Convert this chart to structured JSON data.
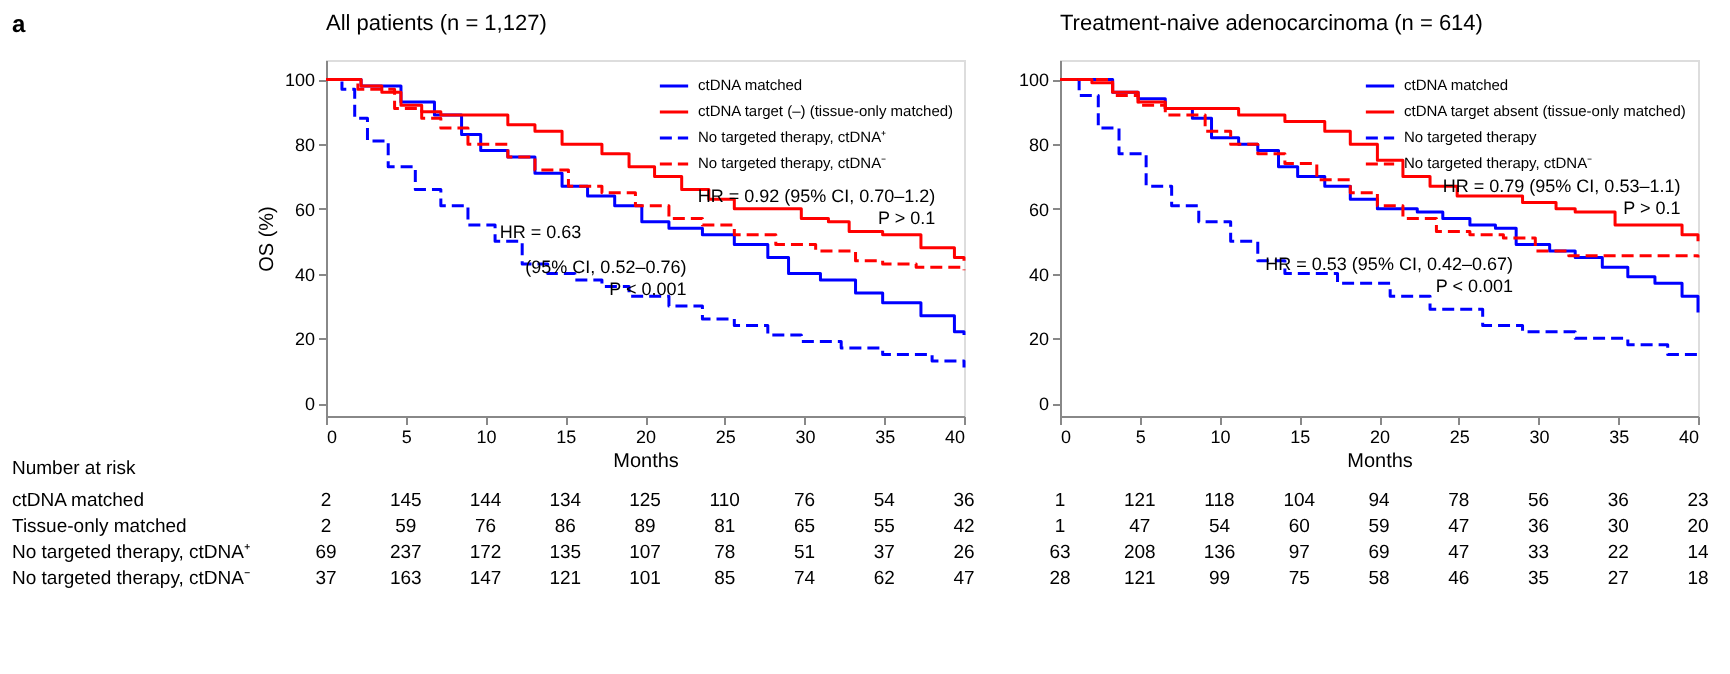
{
  "chart_data": [
    {
      "type": "step",
      "title": "All patients (n = 1,127)",
      "xlabel": "Months",
      "ylabel": "OS (%)",
      "xlim": [
        0,
        40
      ],
      "xticks": [
        0,
        5,
        10,
        15,
        20,
        25,
        30,
        35,
        40
      ],
      "ylim": [
        -4,
        106
      ],
      "yticks": [
        0,
        20,
        40,
        60,
        80,
        100
      ],
      "legend": "top right",
      "series": [
        {
          "name": "ctDNA matched",
          "color": "#0000ff",
          "line_style": "solid",
          "x": [
            0,
            2.2,
            4.7,
            6.8,
            8.5,
            9.7,
            11.4,
            13.1,
            14.8,
            16.4,
            18.1,
            19.8,
            21.5,
            23.6,
            25.6,
            27.7,
            29,
            31,
            33.2,
            34.9,
            37.3,
            39.4,
            40
          ],
          "values": [
            100,
            98,
            93,
            89,
            83,
            78,
            76,
            71,
            67,
            64,
            61,
            56,
            54,
            52,
            49,
            45,
            40,
            38,
            34,
            31,
            27,
            22,
            21
          ]
        },
        {
          "name": "ctDNA target (–) (tissue-only matched)",
          "color": "#ff0000",
          "line_style": "solid",
          "x": [
            0,
            2.2,
            3.5,
            4.7,
            6,
            7.2,
            10.2,
            11.4,
            13.1,
            14.8,
            17.3,
            19,
            20.6,
            22.3,
            24,
            25.6,
            28.6,
            29.8,
            31.5,
            32.8,
            34.9,
            37.3,
            39.4,
            40
          ],
          "values": [
            100,
            98,
            96,
            92,
            90,
            89,
            89,
            86,
            84,
            80,
            77,
            73,
            70,
            66,
            63,
            60,
            60,
            57,
            56,
            53,
            52,
            48,
            45,
            44
          ]
        },
        {
          "name": "No targeted therapy, ctDNA⁺",
          "color": "#0000ff",
          "line_style": "dashed",
          "x": [
            0,
            1,
            1.8,
            2.6,
            3.9,
            5.6,
            7.2,
            8.9,
            10.6,
            12.3,
            13.9,
            15.6,
            17.3,
            19,
            21.5,
            23.6,
            25.6,
            27.7,
            29.8,
            32.3,
            34.9,
            38,
            40
          ],
          "values": [
            100,
            97,
            88,
            81,
            73,
            66,
            61,
            55,
            50,
            43,
            40,
            38,
            36,
            33,
            30,
            26,
            24,
            21,
            19,
            17,
            15,
            13,
            11
          ]
        },
        {
          "name": "No targeted therapy, ctDNA⁻",
          "color": "#ff0000",
          "line_style": "dashed",
          "x": [
            0,
            2,
            4.3,
            6,
            7.2,
            8.9,
            11.4,
            13.1,
            15.2,
            17.3,
            19.4,
            21.5,
            23.6,
            25.6,
            28.2,
            30.7,
            33.2,
            34.9,
            37,
            40
          ],
          "values": [
            100,
            97,
            91,
            88,
            85,
            80,
            76,
            72,
            67,
            65,
            61,
            57,
            55,
            52,
            49,
            47,
            44,
            43,
            42,
            41
          ]
        }
      ],
      "annotations": [
        "a",
        "Number at risk",
        "ctDNA matched",
        "Tissue-only matched",
        "No targeted therapy, ctDNA⁺",
        "No targeted therapy, ctDNA⁻",
        "HR = 0.92 (95% CI, 0.70–1.2)\nP > 0.1",
        "HR = 0.63",
        "(95% CI, 0.52–0.76)\nP < 0.001",
        "2",
        "145",
        "144",
        "134",
        "125",
        "110",
        "76",
        "54",
        "36",
        "2",
        "59",
        "76",
        "86",
        "89",
        "81",
        "65",
        "55",
        "42",
        "69",
        "237",
        "172",
        "135",
        "107",
        "78",
        "51",
        "37",
        "26",
        "37",
        "163",
        "147",
        "121",
        "101",
        "85",
        "74",
        "62",
        "47"
      ]
    },
    {
      "type": "step",
      "title": "Treatment-naive adenocarcinoma (n = 614)",
      "xlabel": "Months",
      "xlim": [
        0,
        40
      ],
      "xticks": [
        0,
        5,
        10,
        15,
        20,
        25,
        30,
        35,
        40
      ],
      "ylim": [
        -4,
        106
      ],
      "yticks": [
        0,
        20,
        40,
        60,
        80,
        100
      ],
      "legend": "top right",
      "series": [
        {
          "name": "ctDNA matched ",
          "color": "#0000ff",
          "line_style": "solid",
          "x": [
            0,
            1.6,
            3.3,
            4.9,
            6.6,
            8.3,
            9.5,
            11.2,
            12.4,
            13.7,
            14.9,
            16.6,
            18.2,
            19.9,
            22.4,
            24,
            25.7,
            27.3,
            28.6,
            30.7,
            32.3,
            34,
            35.6,
            37.3,
            39,
            40
          ],
          "values": [
            100,
            100,
            96,
            94,
            91,
            88,
            82,
            80,
            78,
            73,
            70,
            67,
            63,
            60,
            59,
            57,
            55,
            54,
            49,
            47,
            45,
            42,
            39,
            37,
            33,
            28
          ]
        },
        {
          "name": "ctDNA target absent (tissue-only matched)",
          "color": "#ff0000",
          "line_style": "solid",
          "x": [
            0,
            2,
            3.3,
            4.9,
            6.6,
            10.7,
            11.2,
            13.2,
            14.1,
            16.6,
            18.2,
            19.9,
            21.5,
            23.2,
            24.9,
            27.3,
            29,
            31.1,
            32.3,
            34.8,
            38.1,
            39,
            40
          ],
          "values": [
            100,
            99,
            96,
            93,
            91,
            91,
            89,
            89,
            87,
            84,
            80,
            75,
            70,
            67,
            64,
            64,
            62,
            60,
            59,
            55,
            55,
            52,
            50
          ]
        },
        {
          "name": "No targeted therapy",
          "color": "#0000ff",
          "line_style": "dashed",
          "x": [
            0,
            1.2,
            2.4,
            3.7,
            5.4,
            7,
            8.7,
            10.7,
            12.4,
            14.1,
            17.4,
            20.7,
            23.2,
            26.5,
            29,
            32.3,
            35.6,
            38.1,
            40
          ],
          "values": [
            100,
            95,
            85,
            77,
            67,
            61,
            56,
            50,
            44,
            40,
            37,
            33,
            29,
            24,
            22,
            20,
            18,
            15,
            14
          ]
        },
        {
          "name": "No targeted therapy, ctDNA⁻ ",
          "color": "#ff0000",
          "line_style": "dashed",
          "x": [
            0,
            3.3,
            4.9,
            6.6,
            9.1,
            10.7,
            12.4,
            14.1,
            16.1,
            18.2,
            19.9,
            21.5,
            23.6,
            25.7,
            27.8,
            29.8,
            31.9,
            40
          ],
          "values": [
            100,
            95,
            92,
            89,
            84,
            80,
            77,
            74,
            69,
            65,
            61,
            57,
            53,
            52,
            51,
            47,
            45.5,
            45
          ]
        }
      ],
      "annotations": [
        "HR = 0.79 (95% CI, 0.53–1.1)\nP > 0.1",
        "HR = 0.53 (95% CI, 0.42–0.67)\nP < 0.001",
        "1",
        "121",
        "118",
        "104",
        "94",
        "78",
        "56",
        "36",
        "23",
        "1",
        "47",
        "54",
        "60",
        "59",
        "47",
        "36",
        "30",
        "20",
        "63",
        "208",
        "136",
        "97",
        "69",
        "47",
        "33",
        "22",
        "14",
        "28",
        "121",
        "99",
        "75",
        "58",
        "46",
        "35",
        "27",
        "18"
      ]
    }
  ]
}
